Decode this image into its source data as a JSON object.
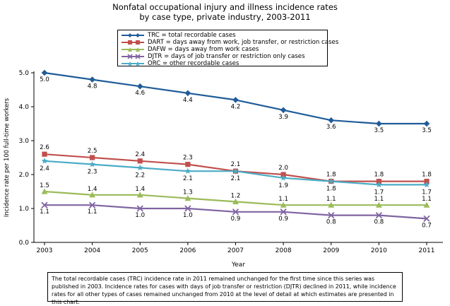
{
  "title_lines": [
    "Nonfatal occupational injury and illness incidence rates",
    "by case type, private industry, 2003-2011",
    ""
  ],
  "chart_data": {
    "type": "line",
    "title": "Nonfatal occupational injury and illness incidence rates by case type, private industry, 2003-2011",
    "xlabel": "Year",
    "ylabel": "Incidence rate per 100 full-time workers",
    "categories": [
      "2003",
      "2004",
      "2005",
      "2006",
      "2007",
      "2008",
      "2009",
      "2010",
      "2011"
    ],
    "ylim": [
      0,
      5.0
    ],
    "yticks": [
      "0.0",
      "1.0",
      "2.0",
      "3.0",
      "4.0",
      "5.0"
    ],
    "legend_placement": "top",
    "grid": false,
    "series": [
      {
        "name": "TRC = total recordable cases",
        "key": "trc",
        "color": "#1f5c99",
        "marker": "diamond",
        "values": [
          5.0,
          4.8,
          4.6,
          4.4,
          4.2,
          3.9,
          3.6,
          3.5,
          3.5
        ],
        "labels": [
          "5.0",
          "4.8",
          "4.6",
          "4.4",
          "4.2",
          "3.9",
          "3.6",
          "3.5",
          "3.5"
        ],
        "label_position": "below"
      },
      {
        "name": "DART = days away from work, job transfer, or restriction cases",
        "key": "dart",
        "color": "#c0504d",
        "marker": "square",
        "values": [
          2.6,
          2.5,
          2.4,
          2.3,
          2.1,
          2.0,
          1.8,
          1.8,
          1.8
        ],
        "labels": [
          "2.6",
          "2.5",
          "2.4",
          "2.3",
          "2.1",
          "2.0",
          "1.8",
          "1.8",
          "1.8"
        ],
        "label_position": "above"
      },
      {
        "name": "DAFW = days away from work cases",
        "key": "dafw",
        "color": "#9bbb59",
        "marker": "triangle",
        "values": [
          1.5,
          1.4,
          1.4,
          1.3,
          1.2,
          1.1,
          1.1,
          1.1,
          1.1
        ],
        "labels": [
          "1.5",
          "1.4",
          "1.4",
          "1.3",
          "1.2",
          "1.1",
          "1.1",
          "1.1",
          "1.1"
        ],
        "label_position": "above"
      },
      {
        "name": "DJTR = days of job transfer or restriction only cases",
        "key": "djtr",
        "color": "#8064a2",
        "marker": "x",
        "values": [
          1.1,
          1.1,
          1.0,
          1.0,
          0.9,
          0.9,
          0.8,
          0.8,
          0.7
        ],
        "labels": [
          "1.1",
          "1.1",
          "1.0",
          "1.0",
          "0.9",
          "0.9",
          "0.8",
          "0.8",
          "0.7"
        ],
        "label_position": "below"
      },
      {
        "name": "ORC = other recordable cases",
        "key": "orc",
        "color": "#4bacc6",
        "marker": "star",
        "values": [
          2.4,
          2.3,
          2.2,
          2.1,
          2.1,
          1.9,
          1.8,
          1.7,
          1.7
        ],
        "labels": [
          "2.4",
          "2.3",
          "2.2",
          "2.1",
          "2.1",
          "1.9",
          "1.8",
          "1.7",
          "1.7"
        ],
        "label_position": "below"
      }
    ]
  },
  "footnote": "The total recordable cases (TRC) incidence rate in 2011 remained unchanged for the first time since this series was published in 2003. Incidence rates for cases with days of job transfer or restriction (DJTR) declined in 2011, while incidence rates for all other types of cases remained unchanged from 2010 at the level of detail at which estimates are presented in this chart."
}
